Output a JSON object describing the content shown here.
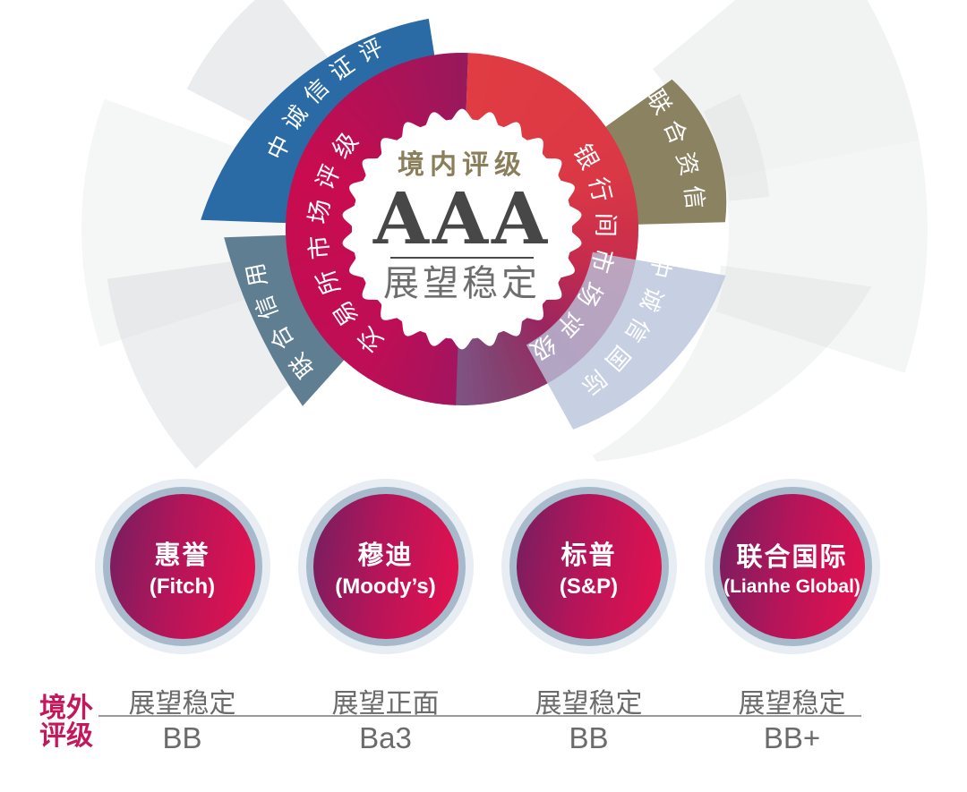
{
  "domestic": {
    "title": "境内评级",
    "rating": "AAA",
    "outlook": "展望稳定",
    "market_labels": [
      {
        "name": "交易所市场评级",
        "side": "left"
      },
      {
        "name": "银行间市场评级",
        "side": "right"
      }
    ]
  },
  "domestic_agencies": [
    {
      "name": "中诚信证评",
      "color": "#2B6BA5"
    },
    {
      "name": "联合信用",
      "color": "#5F7E92"
    },
    {
      "name": "联合资信",
      "color": "#8B8262"
    },
    {
      "name": "中诚信国际",
      "color": "#B9C3DB"
    }
  ],
  "overseas": {
    "label_lines": [
      "境外",
      "评级"
    ],
    "agencies": [
      {
        "name_cn": "惠誉",
        "name_en": "(Fitch)",
        "outlook": "展望稳定",
        "rating": "BB"
      },
      {
        "name_cn": "穆迪",
        "name_en": "(Moody’s)",
        "outlook": "展望正面",
        "rating": "Ba3"
      },
      {
        "name_cn": "标普",
        "name_en": "(S&P)",
        "outlook": "展望稳定",
        "rating": "BB"
      },
      {
        "name_cn": "联合国际",
        "name_en": "(Lianhe Global)",
        "outlook": "展望稳定",
        "rating": "BB+"
      }
    ]
  },
  "colors": {
    "ring_right_top": "#E13C43",
    "ring_right_mid": "#C52C4D",
    "ring_right_bottom": "#7F5284",
    "ring_left_bottom": "#A3145F",
    "ring_left_mid": "#C90C4F",
    "ring_left_top": "#97195C",
    "badge_title": "#8A7F5B",
    "badge_rating": "#474747",
    "badge_outlook": "#6E6E6E",
    "overseas_label": "#C4175C",
    "circle_outer": "#E7EDF3",
    "circle_mid": "#A7BACB",
    "circle_grad_from": "#731F60",
    "circle_grad_to": "#E6114E",
    "table_text": "#6B6B6B",
    "table_line": "#9A9A9A",
    "background_wedge": "#D8DADB"
  }
}
